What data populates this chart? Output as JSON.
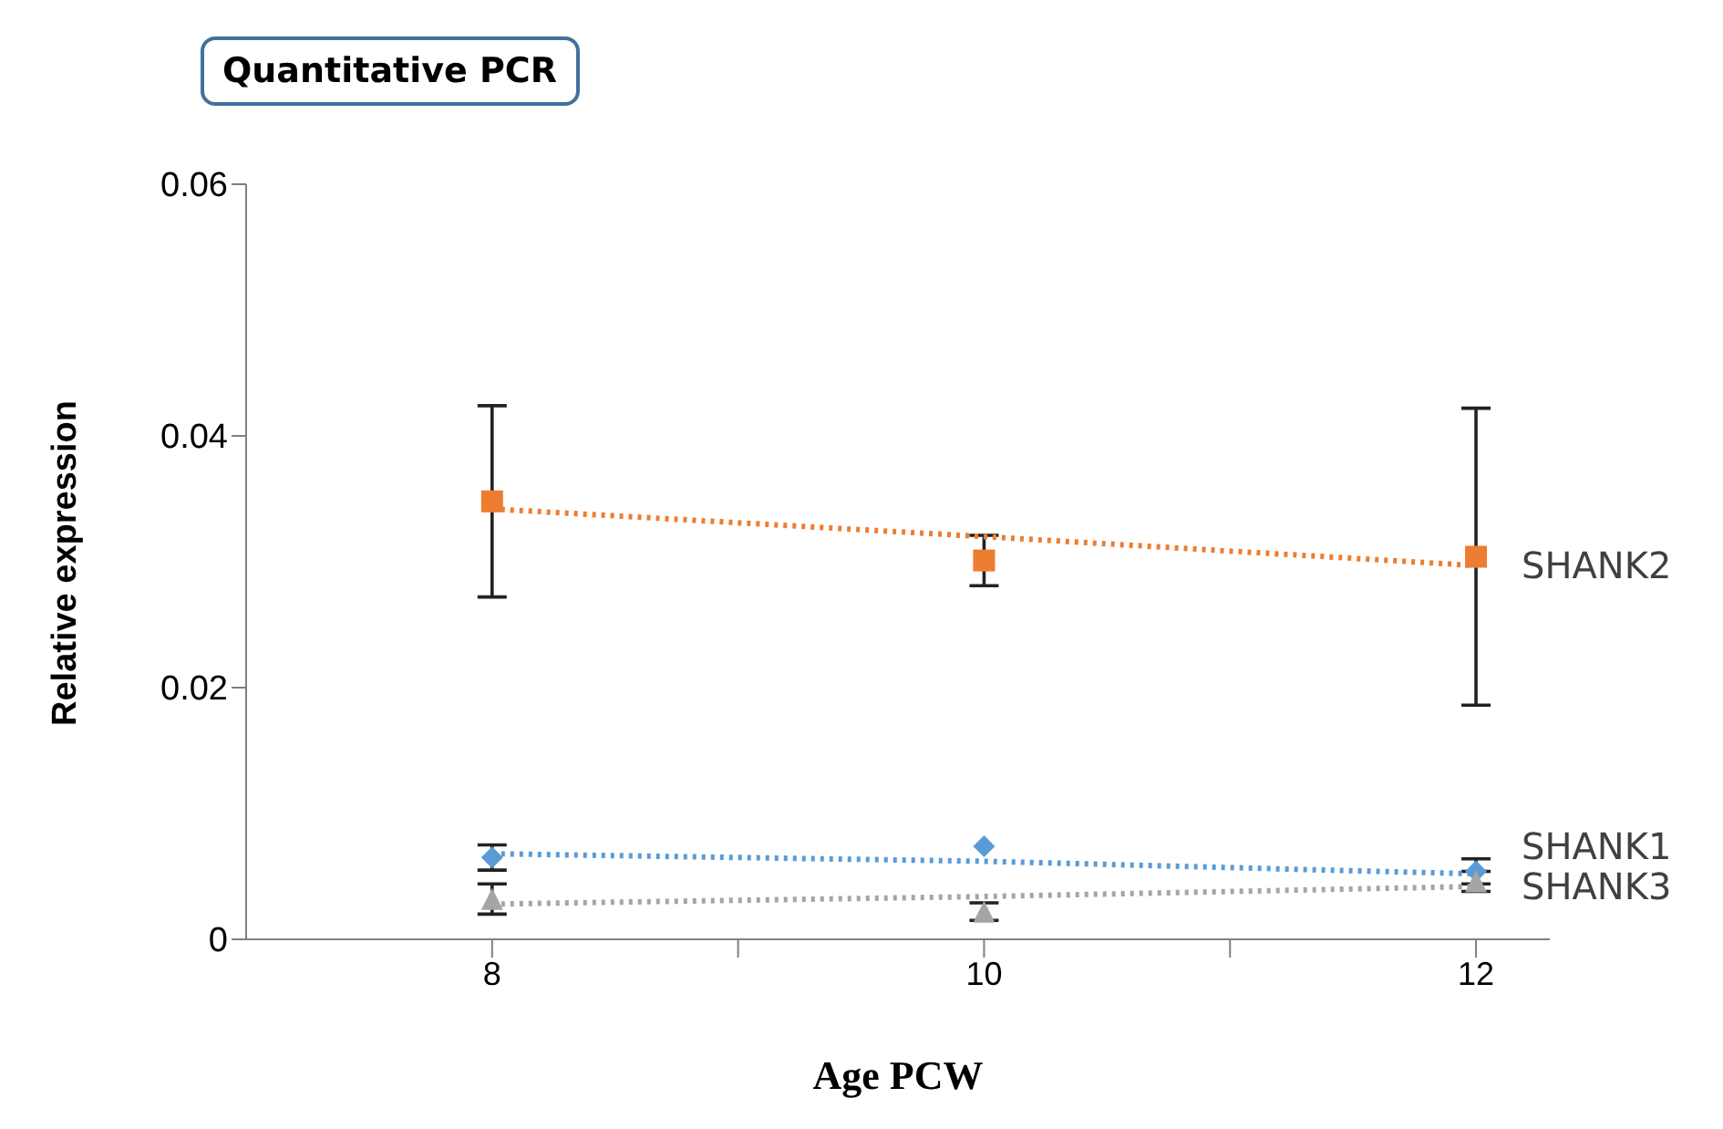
{
  "chart_data": {
    "type": "scatter",
    "title": "Quantitative PCR",
    "xlabel": "Age PCW",
    "ylabel": "Relative expression",
    "x": [
      8,
      10,
      12
    ],
    "xlim": [
      7,
      12.3
    ],
    "xticks": [
      8,
      {
        "value": 9,
        "label": null
      },
      10,
      {
        "value": 11,
        "label": null
      },
      12
    ],
    "ylim": [
      0,
      0.06
    ],
    "yticks": [
      0,
      0.02,
      0.04,
      0.06
    ],
    "grid": false,
    "legend": false,
    "series": [
      {
        "type": "scatter",
        "color": "#ed7d31",
        "marker": "square",
        "values": [
          0.0348,
          0.0301,
          0.0304
        ],
        "errors": [
          0.0076,
          0.002,
          0.0118
        ]
      },
      {
        "type": "scatter",
        "color": "#5b9bd5",
        "marker": "diamond",
        "values": [
          0.0065,
          0.0074,
          0.0054
        ],
        "errors": [
          0.001,
          null,
          0.001
        ]
      },
      {
        "type": "scatter",
        "color": "#a5a5a5",
        "marker": "triangle",
        "values": [
          0.0032,
          0.0022,
          0.0046
        ],
        "errors": [
          0.0012,
          0.0007,
          0.0008
        ]
      },
      {
        "type": "line",
        "name": "SHANK2",
        "color": "#ed7d31",
        "values": [
          0.0342,
          0.032,
          0.0297
        ],
        "line_style": "dotted",
        "marker": "none"
      },
      {
        "type": "line",
        "name": "SHANK1",
        "color": "#5b9bd5",
        "values": [
          0.0068,
          0.0062,
          0.0052
        ],
        "line_style": "dotted",
        "marker": "none"
      },
      {
        "type": "line",
        "name": "SHANK3",
        "color": "#a5a5a5",
        "values": [
          0.0028,
          0.0034,
          0.0042
        ],
        "line_style": "dotted",
        "marker": "none"
      }
    ]
  }
}
